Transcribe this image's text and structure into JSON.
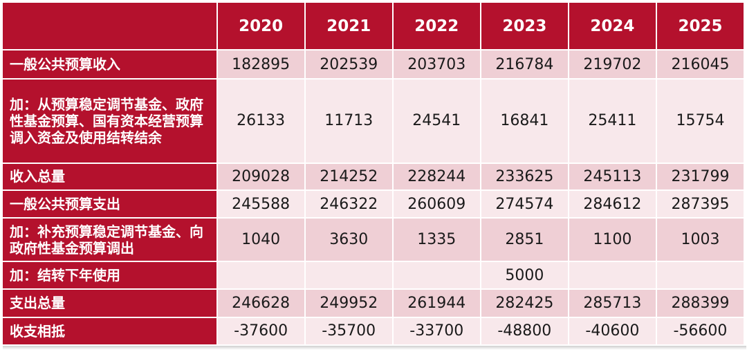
{
  "header": {
    "years": [
      "2020",
      "2021",
      "2022",
      "2023",
      "2024",
      "2025"
    ]
  },
  "rows": [
    {
      "label": "一般公共预算收入",
      "values": [
        "182895",
        "202539",
        "203703",
        "216784",
        "219702",
        "216045"
      ]
    },
    {
      "label": "加：从预算稳定调节基金、政府性基金预算、国有资本经营预算调入资金及使用结转结余",
      "values": [
        "26133",
        "11713",
        "24541",
        "16841",
        "25411",
        "15754"
      ]
    },
    {
      "label": "收入总量",
      "values": [
        "209028",
        "214252",
        "228244",
        "233625",
        "245113",
        "231799"
      ]
    },
    {
      "label": "一般公共预算支出",
      "values": [
        "245588",
        "246322",
        "260609",
        "274574",
        "284612",
        "287395"
      ]
    },
    {
      "label": "加：补充预算稳定调节基金、向政府性基金预算调出",
      "values": [
        "1040",
        "3630",
        "1335",
        "2851",
        "1100",
        "1003"
      ]
    },
    {
      "label": "加：结转下年使用",
      "values": [
        "",
        "",
        "",
        "5000",
        "",
        ""
      ]
    },
    {
      "label": "支出总量",
      "values": [
        "246628",
        "249952",
        "261944",
        "282425",
        "285713",
        "288399"
      ]
    },
    {
      "label": "收支相抵",
      "values": [
        "-37600",
        "-35700",
        "-33700",
        "-48800",
        "-40600",
        "-56600"
      ]
    }
  ],
  "colors": {
    "header_bg": "#b4112d",
    "row_dark": "#efcfd5",
    "row_light": "#f8e8eb"
  }
}
